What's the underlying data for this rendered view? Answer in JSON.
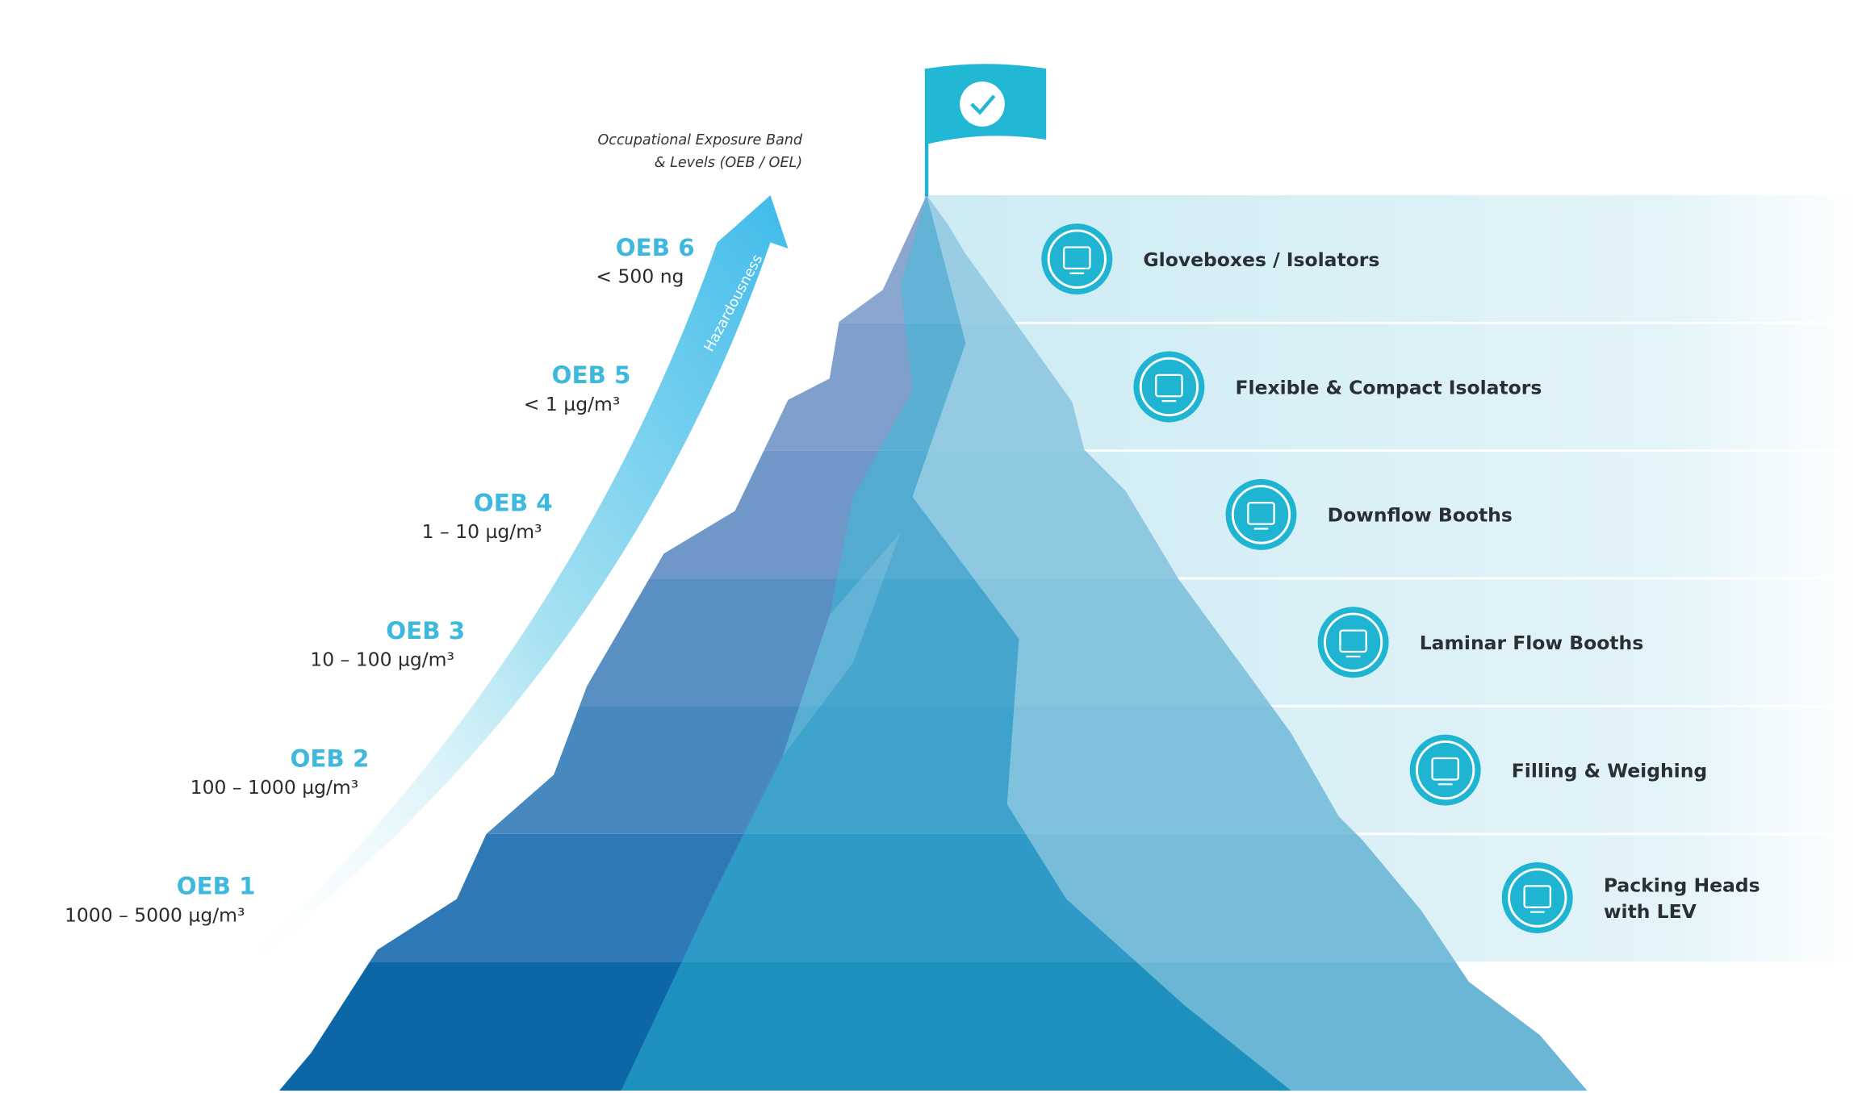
{
  "axis_label": {
    "line1": "Occupational Exposure Band",
    "line2": "& Levels (OEB / OEL)"
  },
  "arrow_label": "Hazardousness",
  "levels": [
    {
      "name": "OEB 6",
      "range": "< 500 ng"
    },
    {
      "name": "OEB 5",
      "range": "< 1 µg/m³"
    },
    {
      "name": "OEB 4",
      "range": "1 – 10 µg/m³"
    },
    {
      "name": "OEB 3",
      "range": "10 – 100 µg/m³"
    },
    {
      "name": "OEB 2",
      "range": "100 – 1000 µg/m³"
    },
    {
      "name": "OEB 1",
      "range": "1000 – 5000 µg/m³"
    }
  ],
  "solutions": [
    {
      "label": "Gloveboxes / Isolators"
    },
    {
      "label": "Flexible & Compact Isolators"
    },
    {
      "label": "Downflow Booths"
    },
    {
      "label": "Laminar Flow Booths"
    },
    {
      "label": "Filling & Weighing"
    },
    {
      "label": [
        "Packing Heads",
        "with LEV"
      ]
    }
  ]
}
